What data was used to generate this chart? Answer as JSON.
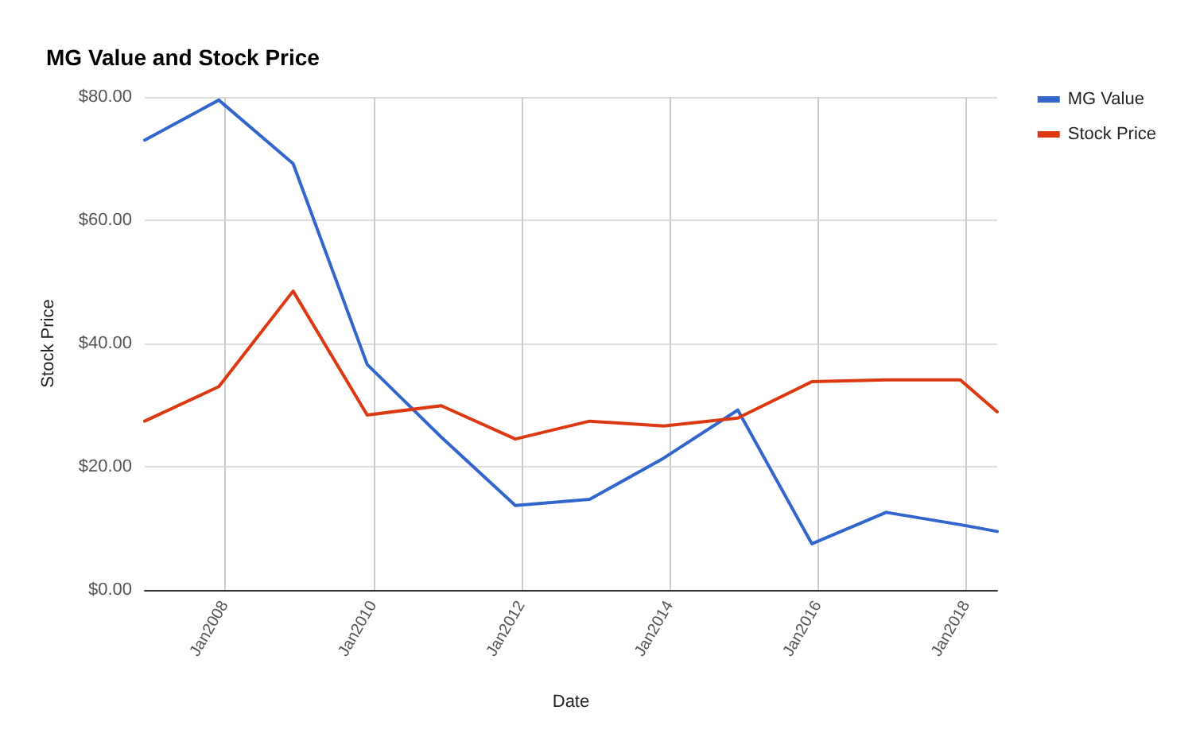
{
  "chart_data": {
    "type": "line",
    "title": "MG Value and Stock Price",
    "xlabel": "Date",
    "ylabel": "Stock Price",
    "x": [
      "2006-12",
      "2007-12",
      "2008-12",
      "2009-12",
      "2010-12",
      "2011-12",
      "2012-12",
      "2013-12",
      "2014-12",
      "2015-12",
      "2016-12",
      "2017-12",
      "2018-06"
    ],
    "series": [
      {
        "name": "MG Value",
        "color": "#3366cc",
        "values": [
          73.0,
          79.5,
          69.2,
          36.6,
          24.8,
          13.7,
          14.7,
          21.4,
          29.2,
          7.5,
          12.6,
          10.6,
          9.5
        ]
      },
      {
        "name": "Stock Price",
        "color": "#dc3912",
        "values": [
          27.4,
          33.0,
          48.5,
          28.4,
          29.9,
          24.5,
          27.4,
          26.6,
          27.9,
          33.8,
          34.1,
          34.1,
          28.9
        ]
      }
    ],
    "xlim": [
      "2006-12",
      "2018-06"
    ],
    "xticks": [
      {
        "value": "2008-01",
        "label": "Jan2008"
      },
      {
        "value": "2010-01",
        "label": "Jan2010"
      },
      {
        "value": "2012-01",
        "label": "Jan2012"
      },
      {
        "value": "2014-01",
        "label": "Jan2014"
      },
      {
        "value": "2016-01",
        "label": "Jan2016"
      },
      {
        "value": "2018-01",
        "label": "Jan2018"
      }
    ],
    "ylim": [
      0,
      80
    ],
    "yticks": [
      {
        "value": 0,
        "label": "$0.00"
      },
      {
        "value": 20,
        "label": "$20.00"
      },
      {
        "value": 40,
        "label": "$40.00"
      },
      {
        "value": 60,
        "label": "$60.00"
      },
      {
        "value": 80,
        "label": "$80.00"
      }
    ],
    "grid": true,
    "legend": "right",
    "marker": "none",
    "line_style": "solid"
  }
}
